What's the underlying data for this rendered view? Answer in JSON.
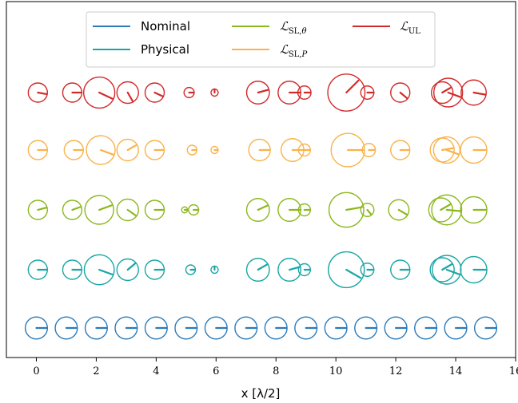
{
  "chart_data": {
    "type": "scatter",
    "xlabel": "x [λ/2]",
    "xlim": [
      -1.0,
      16.0
    ],
    "x_ticks": [
      0,
      2,
      4,
      6,
      8,
      10,
      12,
      14,
      16
    ],
    "legend": {
      "placement": "top-center",
      "entries": [
        {
          "id": "nominal",
          "label": "Nominal",
          "color": "#2a7ab8"
        },
        {
          "id": "physical",
          "label": "Physical",
          "color": "#1aa6a6"
        },
        {
          "id": "sl_theta",
          "label": "L_SL,θ",
          "color": "#8db81e"
        },
        {
          "id": "sl_p",
          "label": "L_SL,P",
          "color": "#f9b34c"
        },
        {
          "id": "ul",
          "label": "L_UL",
          "color": "#d12a2a"
        }
      ]
    },
    "series": [
      {
        "id": "ul",
        "color": "#d12a2a",
        "elements": [
          {
            "x": 0.05,
            "r": 0.32,
            "angle": -10
          },
          {
            "x": 1.2,
            "r": 0.32,
            "angle": 0
          },
          {
            "x": 2.1,
            "r": 0.52,
            "angle": -25
          },
          {
            "x": 3.05,
            "r": 0.36,
            "angle": -60
          },
          {
            "x": 3.95,
            "r": 0.32,
            "angle": -25
          },
          {
            "x": 5.1,
            "r": 0.17,
            "angle": 0
          },
          {
            "x": 5.95,
            "r": 0.12,
            "angle": 90
          },
          {
            "x": 7.4,
            "r": 0.38,
            "angle": 15
          },
          {
            "x": 8.45,
            "r": 0.38,
            "angle": 0
          },
          {
            "x": 8.95,
            "r": 0.22,
            "angle": 0
          },
          {
            "x": 10.35,
            "r": 0.62,
            "angle": 45
          },
          {
            "x": 11.05,
            "r": 0.22,
            "angle": 0
          },
          {
            "x": 12.15,
            "r": 0.32,
            "angle": -40
          },
          {
            "x": 13.55,
            "r": 0.36,
            "angle": 30
          },
          {
            "x": 13.75,
            "r": 0.48,
            "angle": -20
          },
          {
            "x": 14.6,
            "r": 0.42,
            "angle": -10
          }
        ]
      },
      {
        "id": "sl_p",
        "color": "#f9b34c",
        "elements": [
          {
            "x": 0.05,
            "r": 0.32,
            "angle": 0
          },
          {
            "x": 1.25,
            "r": 0.32,
            "angle": 0
          },
          {
            "x": 2.15,
            "r": 0.48,
            "angle": -20
          },
          {
            "x": 3.05,
            "r": 0.36,
            "angle": 30
          },
          {
            "x": 3.95,
            "r": 0.32,
            "angle": 0
          },
          {
            "x": 5.2,
            "r": 0.16,
            "angle": 0
          },
          {
            "x": 5.95,
            "r": 0.12,
            "angle": 0
          },
          {
            "x": 7.45,
            "r": 0.36,
            "angle": 0
          },
          {
            "x": 8.55,
            "r": 0.38,
            "angle": 0
          },
          {
            "x": 8.95,
            "r": 0.2,
            "angle": 0
          },
          {
            "x": 10.4,
            "r": 0.56,
            "angle": 0
          },
          {
            "x": 11.1,
            "r": 0.22,
            "angle": 0
          },
          {
            "x": 12.15,
            "r": 0.32,
            "angle": 0
          },
          {
            "x": 13.55,
            "r": 0.4,
            "angle": 10
          },
          {
            "x": 13.7,
            "r": 0.44,
            "angle": -20
          },
          {
            "x": 14.6,
            "r": 0.44,
            "angle": 0
          }
        ]
      },
      {
        "id": "sl_theta",
        "color": "#8db81e",
        "elements": [
          {
            "x": 0.05,
            "r": 0.32,
            "angle": 15
          },
          {
            "x": 1.2,
            "r": 0.32,
            "angle": 20
          },
          {
            "x": 2.1,
            "r": 0.48,
            "angle": 20
          },
          {
            "x": 3.05,
            "r": 0.36,
            "angle": -35
          },
          {
            "x": 3.95,
            "r": 0.32,
            "angle": 0
          },
          {
            "x": 4.95,
            "r": 0.1,
            "angle": 0
          },
          {
            "x": 5.25,
            "r": 0.17,
            "angle": 0
          },
          {
            "x": 7.4,
            "r": 0.38,
            "angle": 25
          },
          {
            "x": 8.45,
            "r": 0.38,
            "angle": 0
          },
          {
            "x": 8.95,
            "r": 0.2,
            "angle": 0
          },
          {
            "x": 10.35,
            "r": 0.58,
            "angle": 10
          },
          {
            "x": 11.05,
            "r": 0.22,
            "angle": -50
          },
          {
            "x": 12.1,
            "r": 0.34,
            "angle": -30
          },
          {
            "x": 13.5,
            "r": 0.4,
            "angle": 30
          },
          {
            "x": 13.7,
            "r": 0.5,
            "angle": -5
          },
          {
            "x": 14.6,
            "r": 0.44,
            "angle": 0
          }
        ]
      },
      {
        "id": "physical",
        "color": "#1aa6a6",
        "elements": [
          {
            "x": 0.05,
            "r": 0.32,
            "angle": 0
          },
          {
            "x": 1.2,
            "r": 0.32,
            "angle": 0
          },
          {
            "x": 2.1,
            "r": 0.5,
            "angle": -20
          },
          {
            "x": 3.05,
            "r": 0.36,
            "angle": 40
          },
          {
            "x": 3.95,
            "r": 0.32,
            "angle": 0
          },
          {
            "x": 5.15,
            "r": 0.16,
            "angle": 0
          },
          {
            "x": 5.95,
            "r": 0.12,
            "angle": 90
          },
          {
            "x": 7.4,
            "r": 0.38,
            "angle": 30
          },
          {
            "x": 8.45,
            "r": 0.38,
            "angle": 15
          },
          {
            "x": 8.95,
            "r": 0.2,
            "angle": 0
          },
          {
            "x": 10.35,
            "r": 0.6,
            "angle": -30
          },
          {
            "x": 11.05,
            "r": 0.22,
            "angle": 0
          },
          {
            "x": 12.15,
            "r": 0.32,
            "angle": 0
          },
          {
            "x": 13.55,
            "r": 0.4,
            "angle": 30
          },
          {
            "x": 13.7,
            "r": 0.48,
            "angle": -20
          },
          {
            "x": 14.6,
            "r": 0.44,
            "angle": 0
          }
        ]
      },
      {
        "id": "nominal",
        "color": "#2a7ab8",
        "elements": [
          {
            "x": 0.0,
            "r": 0.37,
            "angle": 0
          },
          {
            "x": 1.0,
            "r": 0.37,
            "angle": 0
          },
          {
            "x": 2.0,
            "r": 0.37,
            "angle": 0
          },
          {
            "x": 3.0,
            "r": 0.37,
            "angle": 0
          },
          {
            "x": 4.0,
            "r": 0.37,
            "angle": 0
          },
          {
            "x": 5.0,
            "r": 0.37,
            "angle": 0
          },
          {
            "x": 6.0,
            "r": 0.37,
            "angle": 0
          },
          {
            "x": 7.0,
            "r": 0.37,
            "angle": 0
          },
          {
            "x": 8.0,
            "r": 0.37,
            "angle": 0
          },
          {
            "x": 9.0,
            "r": 0.37,
            "angle": 0
          },
          {
            "x": 10.0,
            "r": 0.37,
            "angle": 0
          },
          {
            "x": 11.0,
            "r": 0.37,
            "angle": 0
          },
          {
            "x": 12.0,
            "r": 0.37,
            "angle": 0
          },
          {
            "x": 13.0,
            "r": 0.37,
            "angle": 0
          },
          {
            "x": 14.0,
            "r": 0.37,
            "angle": 0
          },
          {
            "x": 15.0,
            "r": 0.37,
            "angle": 0
          }
        ]
      }
    ]
  }
}
